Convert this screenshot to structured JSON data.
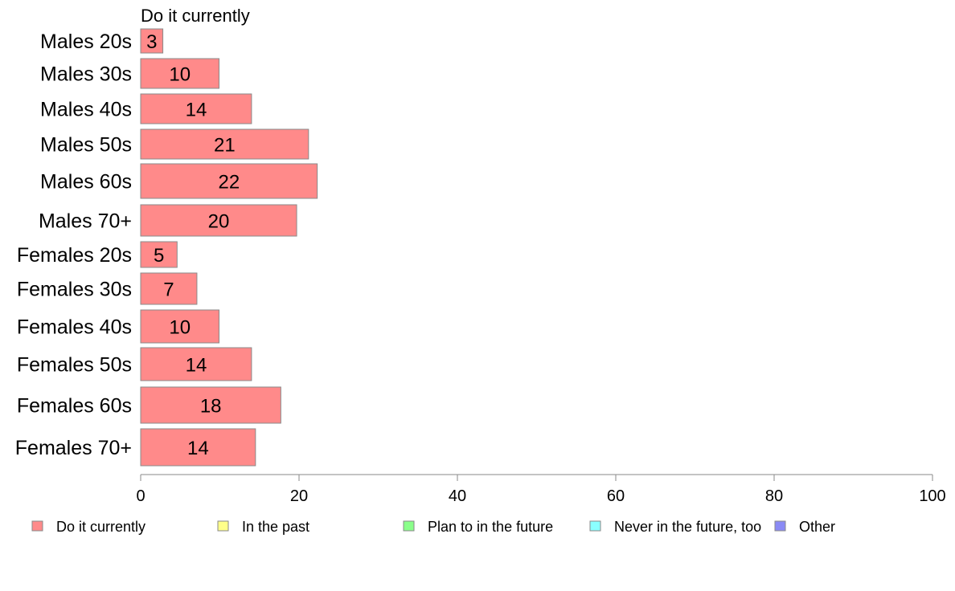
{
  "chart_data": {
    "type": "bar",
    "orientation": "horizontal",
    "title": "Do it currently",
    "categories": [
      "Males 20s",
      "Males 30s",
      "Males 40s",
      "Males 50s",
      "Males 60s",
      "Males 70+",
      "Females 20s",
      "Females 30s",
      "Females 40s",
      "Females 50s",
      "Females 60s",
      "Females 70+"
    ],
    "series": [
      {
        "name": "Do it currently",
        "color": "#ff8a8a",
        "values": [
          2.8,
          9.9,
          14.0,
          21.2,
          22.3,
          19.7,
          4.6,
          7.1,
          9.9,
          14.0,
          17.7,
          14.5
        ],
        "labels": [
          "3",
          "10",
          "14",
          "21",
          "22",
          "20",
          "5",
          "7",
          "10",
          "14",
          "18",
          "14"
        ]
      }
    ],
    "xlim": [
      0,
      100
    ],
    "xticks": [
      0,
      20,
      40,
      60,
      80,
      100
    ],
    "xtick_labels": [
      "0",
      "20",
      "40",
      "60",
      "80",
      "100"
    ],
    "grid": false,
    "legend": {
      "position": "bottom",
      "items": [
        {
          "label": "Do it currently",
          "color": "#ff8a8a"
        },
        {
          "label": "In the past",
          "color": "#ffff8a"
        },
        {
          "label": "Plan to in the future",
          "color": "#8aff8a"
        },
        {
          "label": "Never in the future, too",
          "color": "#8affff"
        },
        {
          "label": "Other",
          "color": "#8a8af5"
        }
      ]
    }
  }
}
